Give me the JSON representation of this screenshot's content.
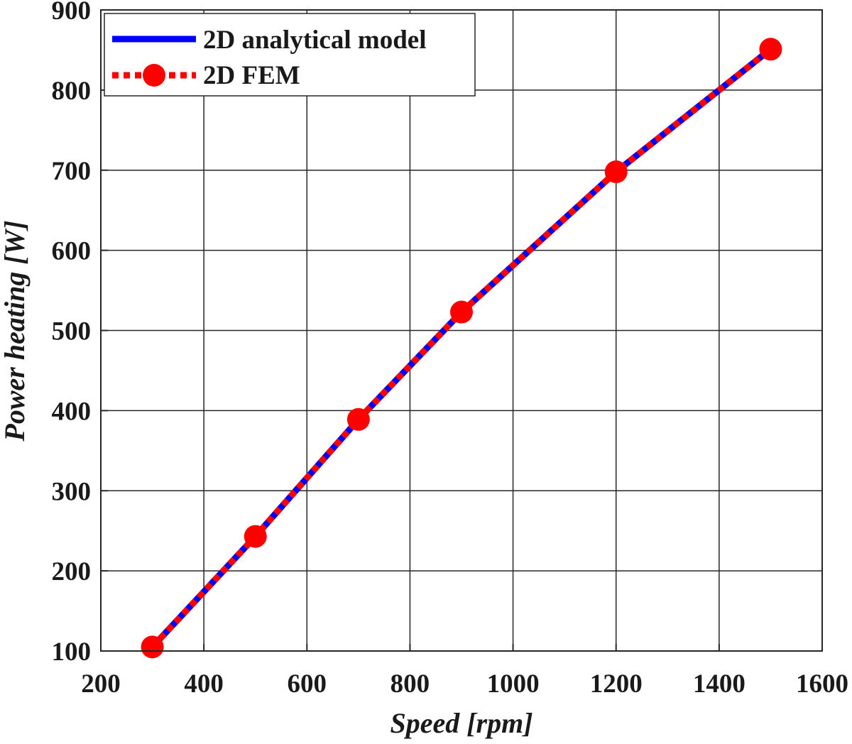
{
  "chart_data": {
    "type": "line",
    "xlabel": "Speed [rpm]",
    "ylabel": "Power heating [W]",
    "xlim": [
      200,
      1600
    ],
    "ylim": [
      100,
      900
    ],
    "xticks": [
      200,
      400,
      600,
      800,
      1000,
      1200,
      1400,
      1600
    ],
    "yticks": [
      100,
      200,
      300,
      400,
      500,
      600,
      700,
      800,
      900
    ],
    "grid": true,
    "legend_position": "top-left",
    "series": [
      {
        "name": "2D analytical model",
        "style": "solid",
        "color": "#0000ff",
        "x": [
          300,
          500,
          700,
          900,
          1200,
          1500
        ],
        "y": [
          105,
          243,
          389,
          523,
          698,
          851
        ]
      },
      {
        "name": "2D FEM",
        "style": "dotted",
        "marker": "circle",
        "color": "#ff0000",
        "x": [
          300,
          500,
          700,
          900,
          1200,
          1500
        ],
        "y": [
          105,
          243,
          389,
          523,
          698,
          851
        ]
      }
    ]
  }
}
